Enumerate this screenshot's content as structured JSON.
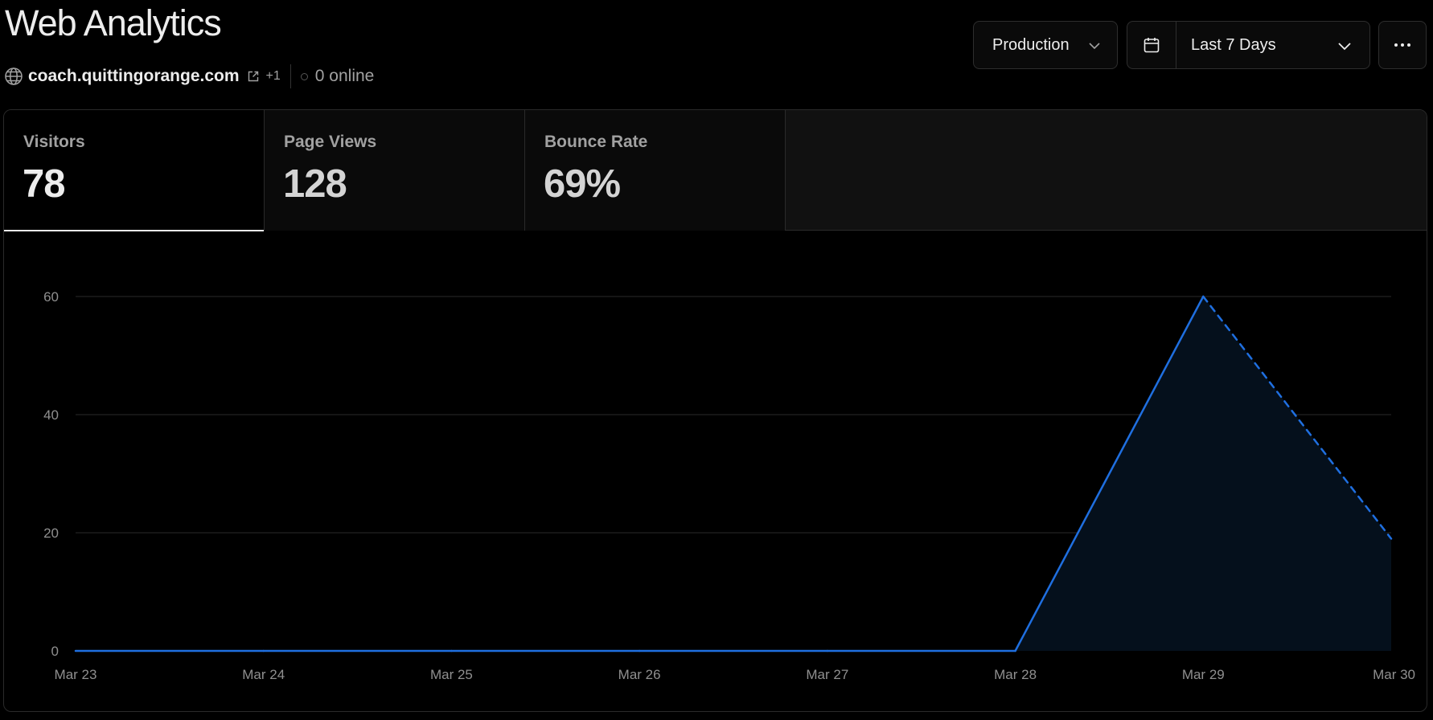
{
  "header": {
    "title": "Web Analytics",
    "domain": "coach.quittingorange.com",
    "extra_domains": "+1",
    "online": "0 online"
  },
  "controls": {
    "environment": "Production",
    "date_range": "Last 7 Days",
    "more_glyph": "···"
  },
  "metrics": [
    {
      "label": "Visitors",
      "value": "78",
      "active": true
    },
    {
      "label": "Page Views",
      "value": "128",
      "active": false
    },
    {
      "label": "Bounce Rate",
      "value": "69%",
      "active": false
    }
  ],
  "chart_data": {
    "type": "area",
    "x": [
      "Mar 23",
      "Mar 24",
      "Mar 25",
      "Mar 26",
      "Mar 27",
      "Mar 28",
      "Mar 29",
      "Mar 30"
    ],
    "series": [
      {
        "values": [
          0,
          0,
          0,
          0,
          0,
          0,
          60,
          19
        ],
        "dashed_from_index": 6
      }
    ],
    "y_ticks": [
      "0",
      "20",
      "40",
      "60"
    ],
    "ylim": [
      0,
      60
    ],
    "grid": true,
    "colors": {
      "line": "#1f6fe0",
      "fill": "#05101c",
      "grid": "#2a2a2a"
    }
  }
}
